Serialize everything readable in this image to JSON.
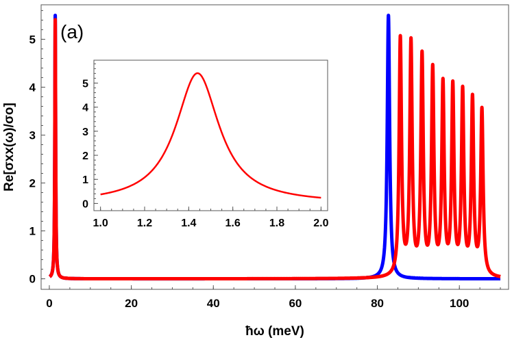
{
  "chart_data": [
    {
      "id": "main",
      "type": "line",
      "title": "",
      "panel_label": "(a)",
      "xlabel": "ħω (meV)",
      "ylabel": "Re[σxx(ω)/σo]",
      "xlim": [
        -2,
        112
      ],
      "ylim": [
        -0.22,
        5.72
      ],
      "xticks": [
        0,
        20,
        40,
        60,
        80,
        100
      ],
      "yticks": [
        0,
        1,
        2,
        3,
        4,
        5
      ],
      "grid": false,
      "legend": "none",
      "series": [
        {
          "color": "#0000ff",
          "peaks": [
            {
              "center": 1.44,
              "height": 5.5,
              "width": 0.12
            },
            {
              "center": 82.7,
              "height": 5.5,
              "width": 0.35
            }
          ]
        },
        {
          "color": "#ff0000",
          "peaks": [
            {
              "center": 1.44,
              "height": 5.41,
              "width": 0.12
            },
            {
              "center": 85.6,
              "height": 4.95,
              "width": 0.35
            },
            {
              "center": 88.2,
              "height": 4.83,
              "width": 0.35
            },
            {
              "center": 90.9,
              "height": 4.54,
              "width": 0.35
            },
            {
              "center": 93.5,
              "height": 4.25,
              "width": 0.35
            },
            {
              "center": 96.0,
              "height": 3.95,
              "width": 0.35
            },
            {
              "center": 98.4,
              "height": 3.9,
              "width": 0.35
            },
            {
              "center": 100.8,
              "height": 3.8,
              "width": 0.35
            },
            {
              "center": 103.2,
              "height": 3.65,
              "width": 0.35
            },
            {
              "center": 105.5,
              "height": 3.45,
              "width": 0.35
            }
          ]
        }
      ]
    },
    {
      "id": "inset",
      "type": "line",
      "title": "",
      "xlabel": "",
      "ylabel": "",
      "xlim": [
        0.97,
        2.03
      ],
      "ylim": [
        -0.3,
        5.95
      ],
      "xticks": [
        "1.0",
        "1.2",
        "1.4",
        "1.6",
        "1.8",
        "2.0"
      ],
      "yticks": [
        0,
        1,
        2,
        3,
        4,
        5
      ],
      "grid": false,
      "legend": "none",
      "series": [
        {
          "color": "#ff0000",
          "peaks": [
            {
              "center": 1.44,
              "height": 5.41,
              "width": 0.12
            }
          ]
        }
      ]
    }
  ]
}
